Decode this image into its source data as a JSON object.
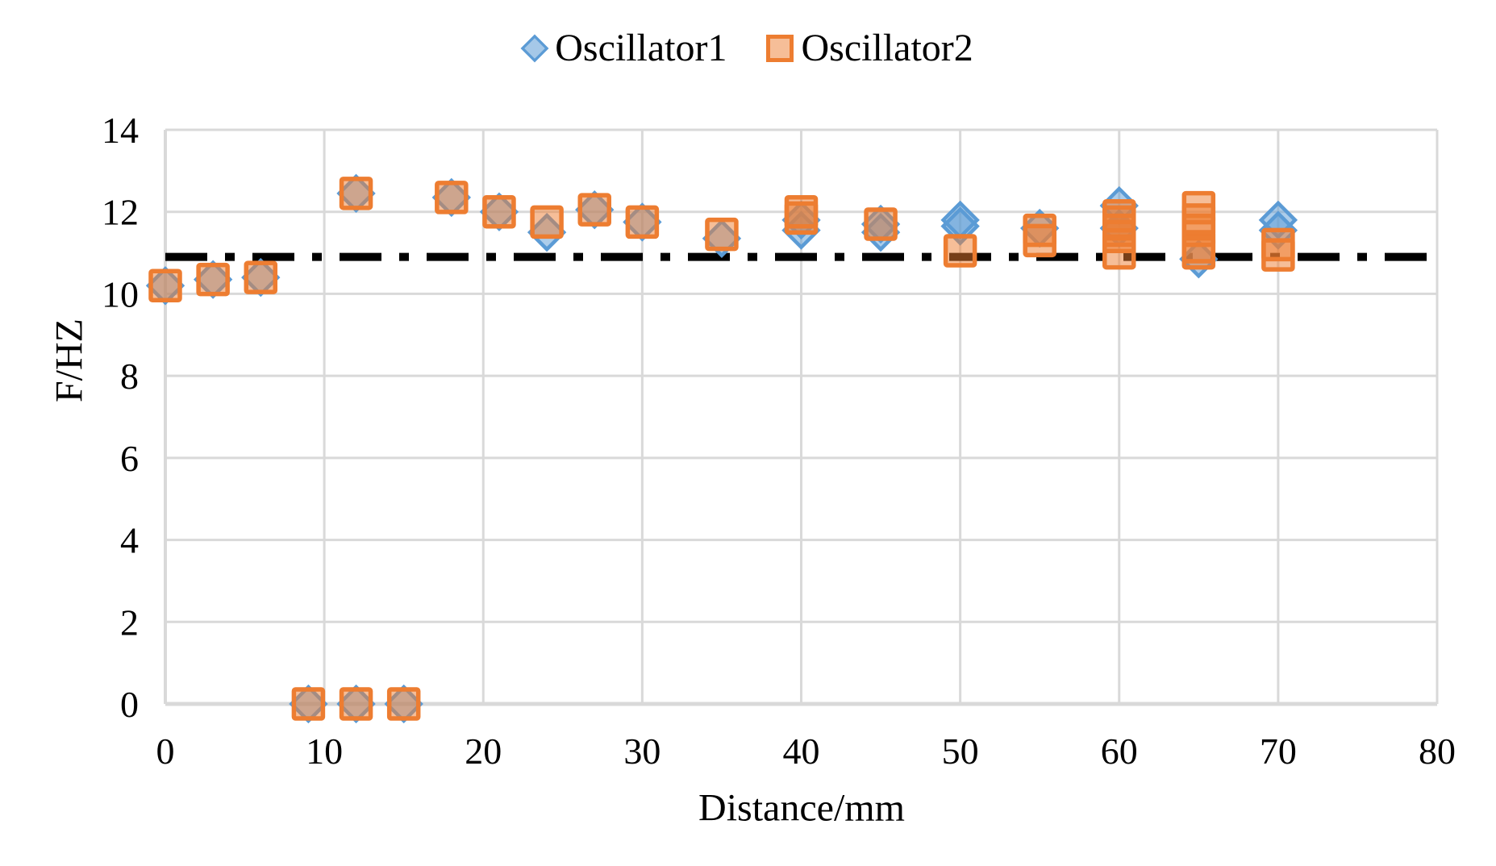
{
  "chart_data": {
    "type": "scatter",
    "title": "",
    "xlabel": "Distance/mm",
    "ylabel": "F/HZ",
    "xlim": [
      0,
      80
    ],
    "ylim": [
      0,
      14
    ],
    "x_ticks": [
      0,
      10,
      20,
      30,
      40,
      50,
      60,
      70,
      80
    ],
    "y_ticks": [
      0,
      2,
      4,
      6,
      8,
      10,
      12,
      14
    ],
    "grid": true,
    "grid_color": "#D9D9D9",
    "legend_position": "top-center",
    "reference_line": {
      "y": 10.9,
      "style": "dash-dot",
      "color": "#000000"
    },
    "series": [
      {
        "name": "Oscillator1",
        "marker": "diamond",
        "color": "#5B9BD5",
        "fill_opacity": 0.5,
        "points": [
          [
            0,
            10.2
          ],
          [
            3,
            10.35
          ],
          [
            6,
            10.4
          ],
          [
            9,
            0
          ],
          [
            12,
            0
          ],
          [
            15,
            0
          ],
          [
            12,
            12.45
          ],
          [
            18,
            12.35
          ],
          [
            21,
            12.0
          ],
          [
            24,
            11.5
          ],
          [
            27,
            12.05
          ],
          [
            30,
            11.75
          ],
          [
            35,
            11.35
          ],
          [
            40,
            11.8
          ],
          [
            40,
            11.55
          ],
          [
            45,
            11.7
          ],
          [
            45,
            11.5
          ],
          [
            50,
            11.8
          ],
          [
            50,
            11.65
          ],
          [
            55,
            11.6
          ],
          [
            60,
            12.15
          ],
          [
            60,
            11.6
          ],
          [
            65,
            10.85
          ],
          [
            70,
            11.8
          ],
          [
            70,
            11.55
          ]
        ]
      },
      {
        "name": "Oscillator2",
        "marker": "square",
        "color": "#ED7D31",
        "fill_opacity": 0.5,
        "points": [
          [
            0,
            10.2
          ],
          [
            3,
            10.35
          ],
          [
            6,
            10.4
          ],
          [
            9,
            0
          ],
          [
            12,
            0
          ],
          [
            15,
            0
          ],
          [
            12,
            12.45
          ],
          [
            18,
            12.35
          ],
          [
            21,
            12.0
          ],
          [
            24,
            11.75
          ],
          [
            27,
            12.05
          ],
          [
            30,
            11.75
          ],
          [
            35,
            11.45
          ],
          [
            40,
            12.0
          ],
          [
            40,
            11.85
          ],
          [
            45,
            11.7
          ],
          [
            50,
            11.05
          ],
          [
            55,
            11.55
          ],
          [
            55,
            11.3
          ],
          [
            60,
            11.9
          ],
          [
            60,
            11.75
          ],
          [
            60,
            11.55
          ],
          [
            60,
            11.4
          ],
          [
            60,
            11.0
          ],
          [
            65,
            12.1
          ],
          [
            65,
            11.8
          ],
          [
            65,
            11.55
          ],
          [
            65,
            11.15
          ],
          [
            65,
            11.0
          ],
          [
            70,
            11.2
          ],
          [
            70,
            10.95
          ]
        ]
      }
    ]
  },
  "colors": {
    "oscillator1": "#5B9BD5",
    "oscillator2": "#ED7D31",
    "gridline": "#D9D9D9",
    "reference_line": "#000000",
    "text": "#000000"
  }
}
